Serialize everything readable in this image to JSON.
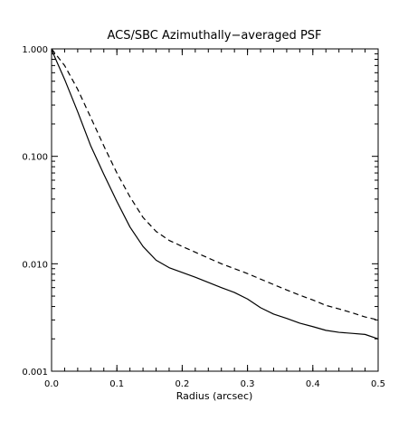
{
  "chart_data": {
    "type": "line",
    "title": "ACS/SBC Azimuthally−averaged PSF",
    "xlabel": "Radius (arcsec)",
    "ylabel": "",
    "xlim": [
      0.0,
      0.5
    ],
    "ylim": [
      0.001,
      1.0
    ],
    "yscale": "log",
    "grid": false,
    "x_ticks": [
      {
        "value": 0.0,
        "label": "0.0"
      },
      {
        "value": 0.1,
        "label": "0.1"
      },
      {
        "value": 0.2,
        "label": "0.2"
      },
      {
        "value": 0.3,
        "label": "0.3"
      },
      {
        "value": 0.4,
        "label": "0.4"
      },
      {
        "value": 0.5,
        "label": "0.5"
      }
    ],
    "y_ticks": [
      {
        "value": 0.001,
        "label": "0.001"
      },
      {
        "value": 0.01,
        "label": "0.010"
      },
      {
        "value": 0.1,
        "label": "0.100"
      },
      {
        "value": 1.0,
        "label": "1.000"
      }
    ],
    "series": [
      {
        "style": "solid",
        "x": [
          0.0,
          0.02,
          0.04,
          0.06,
          0.08,
          0.1,
          0.12,
          0.14,
          0.16,
          0.18,
          0.2,
          0.22,
          0.24,
          0.26,
          0.28,
          0.3,
          0.32,
          0.34,
          0.36,
          0.38,
          0.4,
          0.42,
          0.44,
          0.46,
          0.48,
          0.5
        ],
        "values": [
          0.98,
          0.52,
          0.26,
          0.125,
          0.068,
          0.038,
          0.022,
          0.0145,
          0.0108,
          0.0092,
          0.0083,
          0.0075,
          0.0067,
          0.006,
          0.0054,
          0.0047,
          0.0039,
          0.0034,
          0.0031,
          0.0028,
          0.0026,
          0.0024,
          0.0023,
          0.00225,
          0.0022,
          0.002
        ]
      },
      {
        "style": "dashed",
        "x": [
          0.0,
          0.02,
          0.04,
          0.06,
          0.08,
          0.1,
          0.12,
          0.14,
          0.16,
          0.18,
          0.2,
          0.22,
          0.24,
          0.26,
          0.28,
          0.3,
          0.32,
          0.34,
          0.36,
          0.38,
          0.4,
          0.42,
          0.44,
          0.46,
          0.48,
          0.5
        ],
        "values": [
          1.0,
          0.7,
          0.42,
          0.23,
          0.125,
          0.07,
          0.042,
          0.027,
          0.02,
          0.0165,
          0.0145,
          0.0128,
          0.0113,
          0.01,
          0.009,
          0.0081,
          0.0072,
          0.0064,
          0.0057,
          0.0051,
          0.0046,
          0.0041,
          0.0038,
          0.0035,
          0.0032,
          0.003
        ]
      }
    ]
  }
}
